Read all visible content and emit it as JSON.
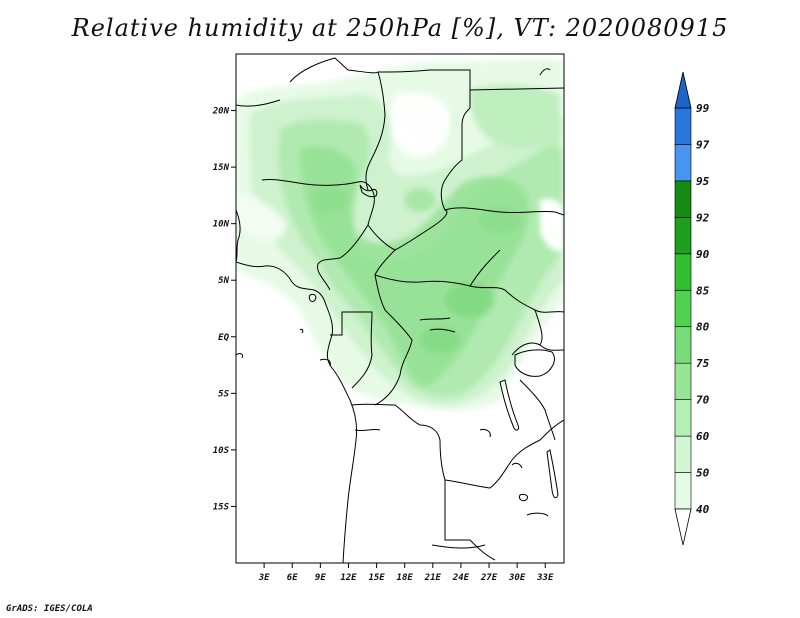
{
  "title": "Relative humidity at 250hPa [%], VT: 2020080915",
  "credit": "GrADS: IGES/COLA",
  "map": {
    "lon_range": [
      0,
      35
    ],
    "lat_range": [
      -20,
      25
    ],
    "x_ticks": [
      "3E",
      "6E",
      "9E",
      "12E",
      "15E",
      "18E",
      "21E",
      "24E",
      "27E",
      "30E",
      "33E"
    ],
    "y_ticks": [
      "20N",
      "15N",
      "10N",
      "5N",
      "EQ",
      "5S",
      "10S",
      "15S"
    ]
  },
  "colorbar": {
    "levels": [
      "40",
      "50",
      "60",
      "70",
      "75",
      "80",
      "85",
      "90",
      "92",
      "95",
      "97",
      "99"
    ],
    "colors": [
      "#ffffff",
      "#e6fae6",
      "#d2f5d2",
      "#b4f0b4",
      "#96e696",
      "#78dc78",
      "#50d250",
      "#32be32",
      "#1ea01e",
      "#148c14",
      "#4696f0",
      "#2878dc",
      "#1e64c8"
    ]
  }
}
